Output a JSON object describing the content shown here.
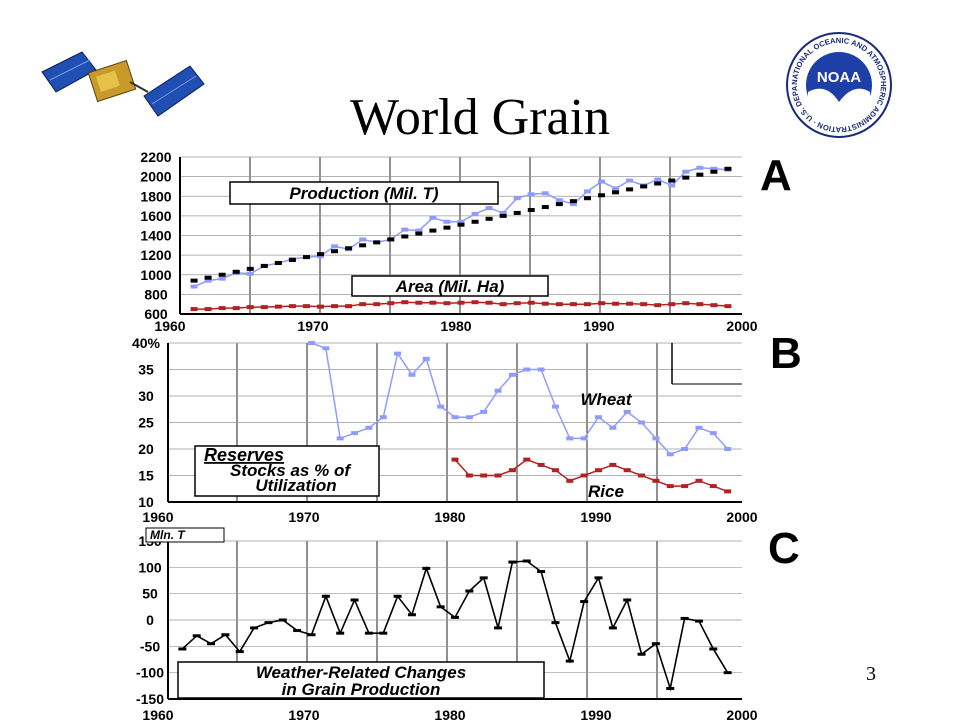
{
  "slide": {
    "title": "World Grain",
    "number": "3",
    "noaa_text": "NOAA",
    "noaa_ring_text": "NATIONAL OCEANIC AND ATMOSPHERIC ADMINISTRATION · U.S. DEPARTMENT OF COMMERCE",
    "colors": {
      "blue": "#8f9cff",
      "red": "#b22222",
      "black": "#000000"
    }
  },
  "chart_data": [
    {
      "type": "line",
      "panel": "A",
      "xlim": [
        1960,
        2000
      ],
      "ylim": [
        600,
        2200
      ],
      "x_ticks": [
        "1960",
        "1970",
        "1980",
        "1990",
        "2000"
      ],
      "y_ticks": [
        "2200",
        "2000",
        "1800",
        "1600",
        "1400",
        "1200",
        "1000",
        "800",
        "600"
      ],
      "labels": {
        "production": "Production (Mil. T)",
        "area": "Area  (Mil. Ha)"
      },
      "grid": true,
      "series": [
        {
          "key": "production",
          "x": [
            1961,
            1962,
            1963,
            1964,
            1965,
            1966,
            1967,
            1968,
            1969,
            1970,
            1971,
            1972,
            1973,
            1974,
            1975,
            1976,
            1977,
            1978,
            1979,
            1980,
            1981,
            1982,
            1983,
            1984,
            1985,
            1986,
            1987,
            1988,
            1989,
            1990,
            1991,
            1992,
            1993,
            1994,
            1995,
            1996,
            1997,
            1998,
            1999
          ],
          "y": [
            880,
            940,
            960,
            1020,
            1010,
            1090,
            1120,
            1160,
            1180,
            1190,
            1290,
            1260,
            1360,
            1330,
            1360,
            1460,
            1450,
            1580,
            1540,
            1540,
            1620,
            1680,
            1630,
            1780,
            1820,
            1830,
            1760,
            1720,
            1850,
            1950,
            1880,
            1960,
            1910,
            1970,
            1910,
            2050,
            2090,
            2080,
            2070
          ]
        },
        {
          "key": "trend",
          "x": [
            1961,
            1962,
            1963,
            1964,
            1965,
            1966,
            1967,
            1968,
            1969,
            1970,
            1971,
            1972,
            1973,
            1974,
            1975,
            1976,
            1977,
            1978,
            1979,
            1980,
            1981,
            1982,
            1983,
            1984,
            1985,
            1986,
            1987,
            1988,
            1989,
            1990,
            1991,
            1992,
            1993,
            1994,
            1995,
            1996,
            1997,
            1998,
            1999
          ],
          "y": [
            940,
            970,
            1000,
            1030,
            1060,
            1090,
            1120,
            1150,
            1180,
            1210,
            1240,
            1270,
            1300,
            1330,
            1360,
            1390,
            1420,
            1450,
            1480,
            1510,
            1540,
            1570,
            1600,
            1630,
            1660,
            1690,
            1720,
            1750,
            1780,
            1810,
            1840,
            1870,
            1900,
            1930,
            1960,
            1990,
            2020,
            2050,
            2080
          ]
        },
        {
          "key": "area",
          "x": [
            1961,
            1962,
            1963,
            1964,
            1965,
            1966,
            1967,
            1968,
            1969,
            1970,
            1971,
            1972,
            1973,
            1974,
            1975,
            1976,
            1977,
            1978,
            1979,
            1980,
            1981,
            1982,
            1983,
            1984,
            1985,
            1986,
            1987,
            1988,
            1989,
            1990,
            1991,
            1992,
            1993,
            1994,
            1995,
            1996,
            1997,
            1998,
            1999
          ],
          "y": [
            650,
            650,
            660,
            660,
            670,
            670,
            675,
            680,
            680,
            675,
            680,
            680,
            700,
            700,
            710,
            720,
            715,
            715,
            710,
            715,
            720,
            715,
            700,
            710,
            715,
            705,
            700,
            700,
            700,
            710,
            705,
            705,
            700,
            690,
            700,
            710,
            700,
            690,
            680
          ]
        }
      ]
    },
    {
      "type": "line",
      "panel": "B",
      "xlim": [
        1960,
        2000
      ],
      "ylim": [
        10,
        40
      ],
      "x_ticks": [
        "1960",
        "1970",
        "1980",
        "1990",
        "2000"
      ],
      "y_ticks": [
        "40%",
        "35",
        "30",
        "25",
        "20",
        "15",
        "10"
      ],
      "labels": {
        "reserves": "Reserves",
        "stocks1": "Stocks as % of",
        "stocks2": "Utilization",
        "wheat": "Wheat",
        "rice": "Rice"
      },
      "grid": true,
      "series": [
        {
          "key": "wheat",
          "x": [
            1970,
            1971,
            1972,
            1973,
            1974,
            1975,
            1976,
            1977,
            1978,
            1979,
            1980,
            1981,
            1982,
            1983,
            1984,
            1985,
            1986,
            1987,
            1988,
            1989,
            1990,
            1991,
            1992,
            1993,
            1994,
            1995,
            1996,
            1997,
            1998,
            1999
          ],
          "y": [
            40,
            39,
            22,
            23,
            24,
            26,
            38,
            34,
            37,
            28,
            26,
            26,
            27,
            31,
            34,
            35,
            35,
            28,
            22,
            22,
            26,
            24,
            27,
            25,
            22,
            19,
            20,
            24,
            23,
            20
          ]
        },
        {
          "key": "rice",
          "x": [
            1980,
            1981,
            1982,
            1983,
            1984,
            1985,
            1986,
            1987,
            1988,
            1989,
            1990,
            1991,
            1992,
            1993,
            1994,
            1995,
            1996,
            1997,
            1998,
            1999
          ],
          "y": [
            18,
            15,
            15,
            15,
            16,
            18,
            17,
            16,
            14,
            15,
            16,
            17,
            16,
            15,
            14,
            13,
            13,
            14,
            13,
            12
          ]
        }
      ]
    },
    {
      "type": "line",
      "panel": "C",
      "xlim": [
        1960,
        2000
      ],
      "ylim": [
        -150,
        150
      ],
      "x_ticks": [
        "1960",
        "1970",
        "1980",
        "1990",
        "2000"
      ],
      "y_ticks": [
        "150",
        "100",
        "50",
        "0",
        "-50",
        "-100",
        "-150"
      ],
      "labels": {
        "unit": "Mln. T",
        "box1": "Weather-Related Changes",
        "box2": "in Grain Production"
      },
      "grid": true,
      "series": [
        {
          "key": "changes",
          "x": [
            1961,
            1962,
            1963,
            1964,
            1965,
            1966,
            1967,
            1968,
            1969,
            1970,
            1971,
            1972,
            1973,
            1974,
            1975,
            1976,
            1977,
            1978,
            1979,
            1980,
            1981,
            1982,
            1983,
            1984,
            1985,
            1986,
            1987,
            1988,
            1989,
            1990,
            1991,
            1992,
            1993,
            1994,
            1995,
            1996,
            1997,
            1998,
            1999
          ],
          "y": [
            -55,
            -30,
            -45,
            -28,
            -60,
            -15,
            -5,
            0,
            -20,
            -28,
            45,
            -25,
            38,
            -25,
            -25,
            45,
            10,
            98,
            25,
            5,
            55,
            80,
            -15,
            110,
            112,
            92,
            -5,
            -78,
            35,
            80,
            -15,
            38,
            -65,
            -45,
            -130,
            3,
            -2,
            -55,
            -100
          ]
        }
      ]
    }
  ]
}
